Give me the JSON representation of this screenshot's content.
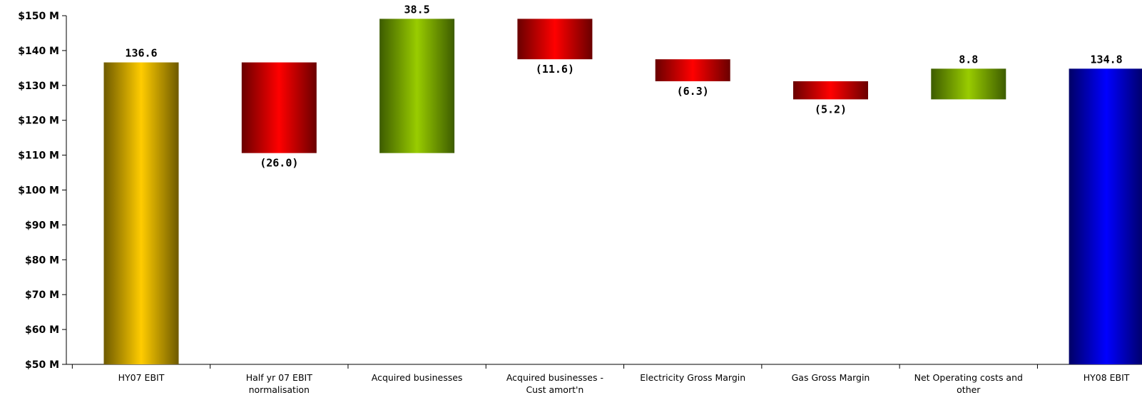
{
  "chart_data": {
    "type": "bar",
    "subtype": "waterfall",
    "title": "",
    "xlabel": "",
    "ylabel": "",
    "ylim": [
      50,
      150
    ],
    "y_ticks": [
      "$50 M",
      "$60 M",
      "$70 M",
      "$80 M",
      "$90 M",
      "$100 M",
      "$110 M",
      "$120 M",
      "$130 M",
      "$140 M",
      "$150 M"
    ],
    "grid": false,
    "legend": "none",
    "categories": [
      [
        "HY07 EBIT"
      ],
      [
        "Half yr 07 EBIT",
        "normalisation"
      ],
      [
        "Acquired businesses"
      ],
      [
        "Acquired businesses -",
        "Cust amort'n"
      ],
      [
        "Electricity Gross Margin"
      ],
      [
        "Gas Gross Margin"
      ],
      [
        "Net Operating costs and",
        "other"
      ],
      [
        "HY08 EBIT"
      ]
    ],
    "bars": [
      {
        "start": 0,
        "end": 136.6,
        "label": "136.6",
        "kind": "total-start",
        "label_pos": "top"
      },
      {
        "start": 136.6,
        "end": 110.6,
        "label": "(26.0)",
        "kind": "decrease",
        "label_pos": "bottom"
      },
      {
        "start": 110.6,
        "end": 149.1,
        "label": "38.5",
        "kind": "increase",
        "label_pos": "top"
      },
      {
        "start": 149.1,
        "end": 137.5,
        "label": "(11.6)",
        "kind": "decrease",
        "label_pos": "bottom"
      },
      {
        "start": 137.5,
        "end": 131.2,
        "label": "(6.3)",
        "kind": "decrease",
        "label_pos": "bottom"
      },
      {
        "start": 131.2,
        "end": 126.0,
        "label": "(5.2)",
        "kind": "decrease",
        "label_pos": "bottom"
      },
      {
        "start": 126.0,
        "end": 134.8,
        "label": "8.8",
        "kind": "increase",
        "label_pos": "top"
      },
      {
        "start": 0,
        "end": 134.8,
        "label": "134.8",
        "kind": "total-end",
        "label_pos": "top"
      }
    ],
    "colors": {
      "total-start": [
        "#6e5a00",
        "#ffcc00"
      ],
      "decrease": [
        "#6a0000",
        "#ff0000"
      ],
      "increase": [
        "#3d5c00",
        "#99cc00"
      ],
      "total-end": [
        "#000066",
        "#0000ff"
      ]
    }
  }
}
